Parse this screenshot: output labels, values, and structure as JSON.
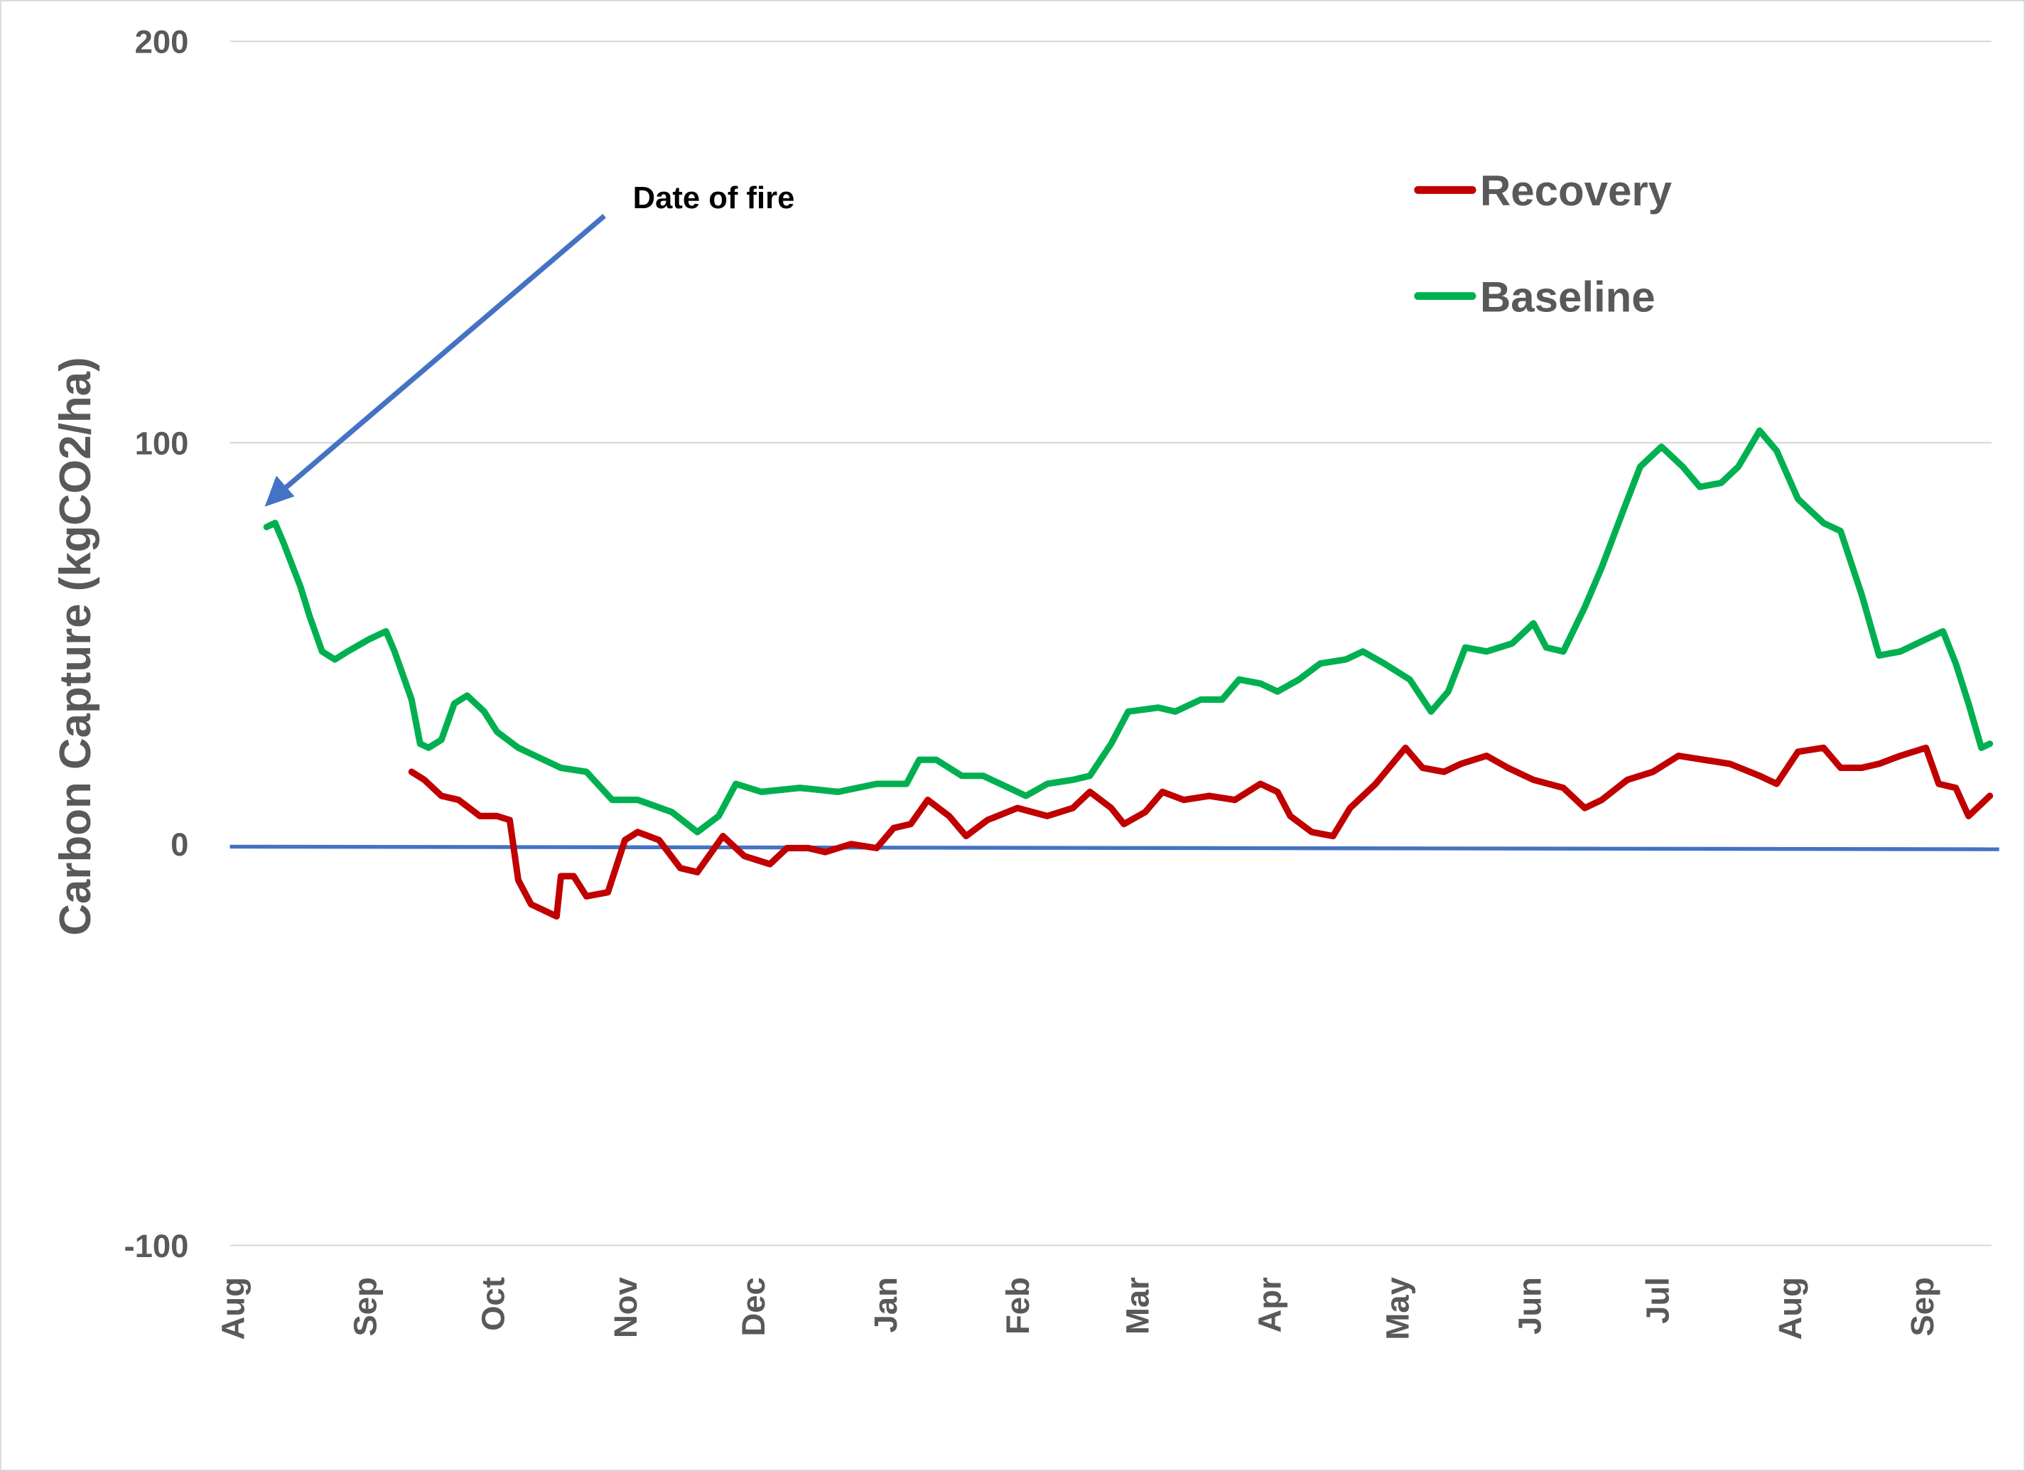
{
  "chart_data": {
    "type": "line",
    "title": "",
    "xlabel": "",
    "ylabel": "Carbon Capture (kgCO2/ha)",
    "ylim": [
      -100,
      200
    ],
    "yticks": [
      200,
      100,
      0,
      -100
    ],
    "ytick_labels": [
      "200",
      "100",
      "0",
      "-100"
    ],
    "grid": true,
    "legend_position": "top-right",
    "x_unit": "days since start of first August",
    "xlim": [
      0,
      413
    ],
    "xticks": [
      0,
      31,
      61,
      92,
      122,
      153,
      184,
      212,
      243,
      273,
      304,
      334,
      365,
      396
    ],
    "xtick_labels": [
      "Aug",
      "Sep",
      "Oct",
      "Nov",
      "Dec",
      "Jan",
      "Feb",
      "Mar",
      "Apr",
      "May",
      "Jun",
      "Jul",
      "Aug",
      "Sep"
    ],
    "reference_line": {
      "value": 0,
      "color": "#4472C4"
    },
    "annotation": {
      "text": "Date of fire",
      "points_to_day": 8,
      "points_to_value": 86,
      "color": "#4472C4"
    },
    "series": [
      {
        "name": "Recovery",
        "color": "#C00000",
        "x": [
          42,
          45,
          49,
          53,
          58,
          62,
          65,
          67,
          70,
          76,
          77,
          80,
          83,
          88,
          92,
          95,
          100,
          105,
          109,
          115,
          120,
          126,
          130,
          135,
          139,
          145,
          151,
          155,
          159,
          163,
          168,
          172,
          177,
          184,
          191,
          197,
          201,
          206,
          209,
          214,
          218,
          223,
          229,
          235,
          241,
          245,
          248,
          253,
          258,
          262,
          268,
          275,
          279,
          284,
          288,
          294,
          299,
          305,
          312,
          317,
          321,
          327,
          333,
          339,
          345,
          351,
          358,
          362,
          367,
          373,
          377,
          382,
          386,
          391,
          397,
          400,
          404,
          407,
          412
        ],
        "values": [
          18,
          16,
          12,
          11,
          7,
          7,
          6,
          -9,
          -15,
          -18,
          -8,
          -8,
          -13,
          -12,
          1,
          3,
          1,
          -6,
          -7,
          2,
          -3,
          -5,
          -1,
          -1,
          -2,
          0,
          -1,
          4,
          5,
          11,
          7,
          2,
          6,
          9,
          7,
          9,
          13,
          9,
          5,
          8,
          13,
          11,
          12,
          11,
          15,
          13,
          7,
          3,
          2,
          9,
          15,
          24,
          19,
          18,
          20,
          22,
          19,
          16,
          14,
          9,
          11,
          16,
          18,
          22,
          21,
          20,
          17,
          15,
          23,
          24,
          19,
          19,
          20,
          22,
          24,
          15,
          14,
          7,
          12
        ]
      },
      {
        "name": "Baseline",
        "color": "#00B050",
        "x": [
          8,
          10,
          12,
          16,
          18,
          21,
          24,
          27,
          32,
          36,
          38,
          42,
          44,
          46,
          49,
          52,
          55,
          59,
          62,
          67,
          71,
          77,
          83,
          89,
          95,
          103,
          109,
          114,
          118,
          124,
          133,
          142,
          151,
          158,
          161,
          165,
          171,
          176,
          182,
          186,
          191,
          197,
          201,
          206,
          210,
          217,
          221,
          227,
          232,
          236,
          241,
          245,
          250,
          255,
          261,
          265,
          270,
          276,
          281,
          285,
          289,
          294,
          300,
          305,
          308,
          312,
          317,
          321,
          326,
          330,
          335,
          340,
          344,
          349,
          353,
          358,
          362,
          367,
          373,
          377,
          382,
          386,
          391,
          397,
          401,
          404,
          407,
          410,
          412
        ],
        "values": [
          79,
          80,
          75,
          64,
          57,
          48,
          46,
          48,
          51,
          53,
          48,
          36,
          25,
          24,
          26,
          35,
          37,
          33,
          28,
          24,
          22,
          19,
          18,
          11,
          11,
          8,
          3,
          7,
          15,
          13,
          14,
          13,
          15,
          15,
          21,
          21,
          17,
          17,
          14,
          12,
          15,
          16,
          17,
          25,
          33,
          34,
          33,
          36,
          36,
          41,
          40,
          38,
          41,
          45,
          46,
          48,
          45,
          41,
          33,
          38,
          49,
          48,
          50,
          55,
          49,
          48,
          59,
          69,
          83,
          94,
          99,
          94,
          89,
          90,
          94,
          103,
          98,
          86,
          80,
          78,
          62,
          47,
          48,
          51,
          53,
          45,
          35,
          24,
          25
        ]
      }
    ]
  }
}
